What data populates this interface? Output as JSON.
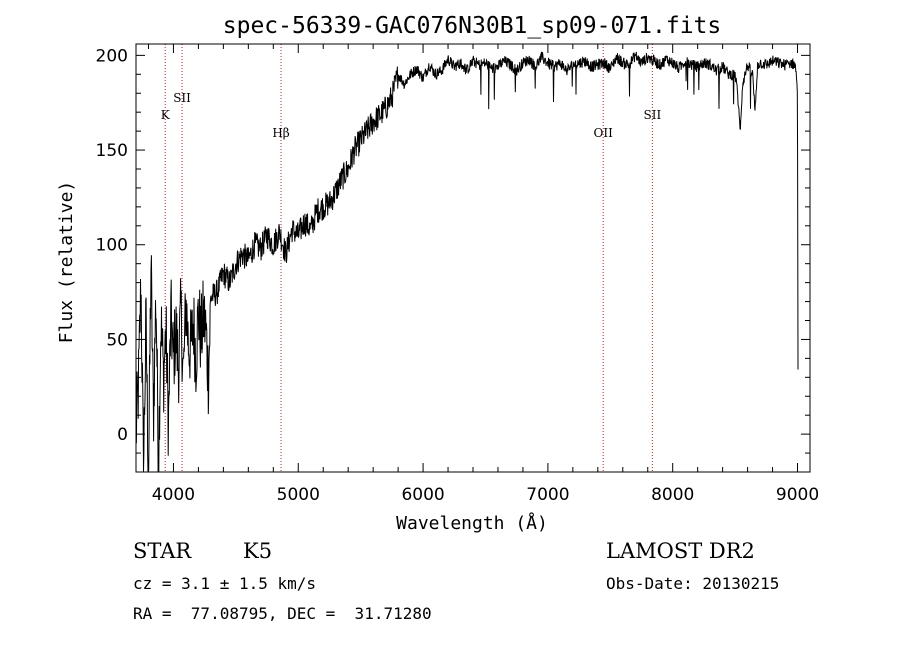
{
  "chart_data": {
    "type": "line",
    "title": "spec-56339-GAC076N30B1_sp09-071.fits",
    "xlabel": "Wavelength (Å)",
    "ylabel": "Flux (relative)",
    "xlim": [
      3700,
      9100
    ],
    "ylim": [
      -20,
      206
    ],
    "xticks": [
      4000,
      5000,
      6000,
      7000,
      8000,
      9000
    ],
    "yticks": [
      0,
      50,
      100,
      150,
      200
    ],
    "grid": false,
    "line_color": "#000000",
    "marker_color": "#b22222",
    "lines": [
      {
        "label": "K",
        "x": 3934
      },
      {
        "label": "SII",
        "x": 4069
      },
      {
        "label": "Hβ",
        "x": 4862
      },
      {
        "label": "OII",
        "x": 7443
      },
      {
        "label": "SII",
        "x": 7837
      }
    ],
    "series": [
      {
        "x": [
          3700,
          3720,
          3740,
          3760,
          3780,
          3800,
          3820,
          3840,
          3860,
          3880,
          3900,
          3920,
          3940,
          3960,
          3980,
          4000,
          4020,
          4040,
          4060,
          4080,
          4100,
          4120,
          4140,
          4160,
          4180,
          4200,
          4220,
          4240,
          4260,
          4280,
          4300,
          4350,
          4400,
          4450,
          4500,
          4550,
          4600,
          4650,
          4700,
          4750,
          4800,
          4850,
          4900,
          4950,
          5000,
          5050,
          5100,
          5150,
          5200,
          5250,
          5300,
          5350,
          5400,
          5450,
          5500,
          5550,
          5600,
          5650,
          5700,
          5750,
          5800,
          5850,
          5900,
          5950,
          6000,
          6050,
          6100,
          6150,
          6200,
          6250,
          6300,
          6350,
          6400,
          6450,
          6500,
          6550,
          6600,
          6650,
          6700,
          6750,
          6800,
          6850,
          6900,
          6950,
          7000,
          7050,
          7100,
          7150,
          7200,
          7250,
          7300,
          7350,
          7400,
          7450,
          7500,
          7550,
          7600,
          7650,
          7700,
          7750,
          7800,
          7850,
          7900,
          7950,
          8000,
          8050,
          8100,
          8150,
          8200,
          8250,
          8300,
          8350,
          8400,
          8450,
          8500,
          8520,
          8540,
          8560,
          8580,
          8600,
          8620,
          8640,
          8660,
          8680,
          8700,
          8750,
          8800,
          8850,
          8900,
          8950,
          8980,
          8990,
          9000,
          9005
        ],
        "y": [
          0,
          25,
          80,
          -20,
          60,
          -25,
          90,
          10,
          75,
          -15,
          60,
          30,
          55,
          5,
          62,
          40,
          55,
          35,
          65,
          30,
          70,
          48,
          45,
          60,
          40,
          65,
          50,
          62,
          55,
          30,
          72,
          75,
          85,
          80,
          90,
          95,
          92,
          100,
          98,
          105,
          100,
          107,
          95,
          108,
          105,
          112,
          108,
          118,
          120,
          122,
          128,
          135,
          140,
          150,
          155,
          160,
          165,
          168,
          172,
          178,
          190,
          185,
          190,
          193,
          188,
          195,
          190,
          192,
          198,
          194,
          196,
          192,
          197,
          195,
          196,
          193,
          194,
          197,
          195,
          192,
          196,
          198,
          194,
          199,
          196,
          194,
          196,
          192,
          195,
          196,
          197,
          194,
          195,
          196,
          193,
          199,
          196,
          195,
          200,
          196,
          199,
          197,
          195,
          198,
          196,
          193,
          197,
          195,
          194,
          196,
          195,
          192,
          194,
          190,
          190,
          180,
          160,
          185,
          190,
          195,
          192,
          190,
          170,
          195,
          196,
          195,
          197,
          196,
          195,
          196,
          195,
          190,
          180,
          0
        ]
      }
    ]
  },
  "info": {
    "object_type": "STAR",
    "subclass": "K5",
    "survey": "LAMOST DR2",
    "cz": "cz = 3.1 ± 1.5 km/s",
    "obs_date": "Obs-Date: 20130215",
    "coords": "RA =  77.08795, DEC =  31.71280"
  }
}
